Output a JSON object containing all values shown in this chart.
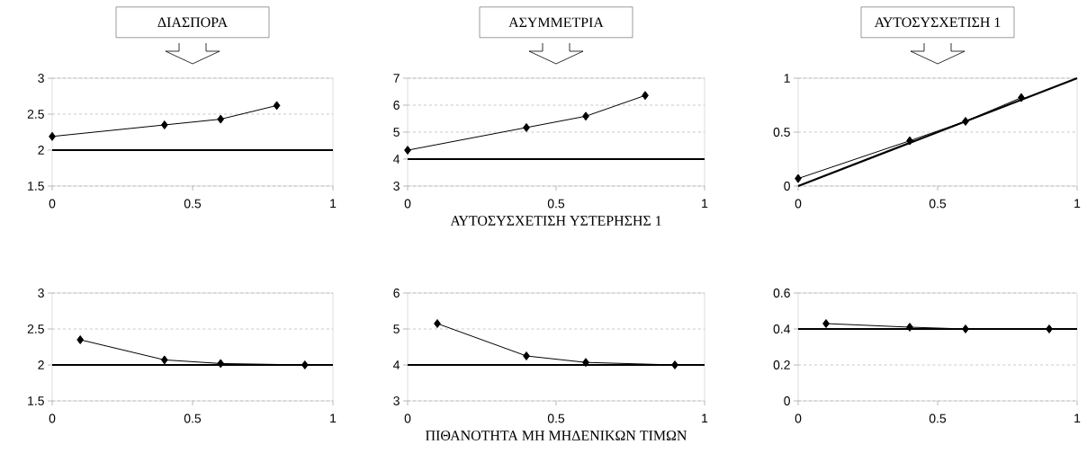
{
  "chart_data": [
    {
      "type": "line",
      "title": "ΔΙΑΣΠΟΡΑ",
      "x": [
        0,
        0.4,
        0.6,
        0.8
      ],
      "values": [
        2.19,
        2.35,
        2.43,
        2.62
      ],
      "color": "#000000",
      "marker": "diamond",
      "xlim": [
        0,
        1
      ],
      "ylim": [
        1.5,
        3
      ],
      "xticks": [
        0,
        0.5,
        1
      ],
      "yticks": [
        1.5,
        2,
        2.5,
        3
      ],
      "grid": "y",
      "ref_lines": [
        {
          "axis": "y",
          "value": 2,
          "color": "#000000"
        }
      ]
    },
    {
      "type": "line",
      "title": "ΑΣΥΜΜΕΤΡΙΑ",
      "xlabel": "ΑΥΤΟΣΥΣΧΕΤΙΣΗ ΥΣΤΕΡΗΣΗΣ 1",
      "x": [
        0,
        0.4,
        0.6,
        0.8
      ],
      "values": [
        4.33,
        5.17,
        5.59,
        6.36
      ],
      "color": "#000000",
      "marker": "diamond",
      "xlim": [
        0,
        1
      ],
      "ylim": [
        3,
        7
      ],
      "xticks": [
        0,
        0.5,
        1
      ],
      "yticks": [
        3,
        4,
        5,
        6,
        7
      ],
      "grid": "y",
      "ref_lines": [
        {
          "axis": "y",
          "value": 4,
          "color": "#000000"
        }
      ]
    },
    {
      "type": "line",
      "title": "ΑΥΤΟΣΥΣΧΕΤΙΣΗ 1",
      "xlim": [
        0,
        1
      ],
      "ylim": [
        0,
        1
      ],
      "xticks": [
        0,
        0.5,
        1
      ],
      "yticks": [
        0,
        0.5,
        1
      ],
      "grid": "y",
      "series": [
        {
          "x": [
            0,
            0.4,
            0.6,
            0.8
          ],
          "values": [
            0.07,
            0.42,
            0.6,
            0.82
          ],
          "color": "#000000",
          "marker": "diamond"
        },
        {
          "x": [
            0,
            1
          ],
          "values": [
            0,
            1
          ],
          "color": "#000000",
          "marker": "none"
        }
      ]
    },
    {
      "type": "line",
      "x": [
        0.1,
        0.4,
        0.6,
        0.9
      ],
      "values": [
        2.35,
        2.07,
        2.02,
        2.0
      ],
      "color": "#000000",
      "marker": "diamond",
      "xlim": [
        0,
        1
      ],
      "ylim": [
        1.5,
        3
      ],
      "xticks": [
        0,
        0.5,
        1
      ],
      "yticks": [
        1.5,
        2,
        2.5,
        3
      ],
      "grid": "y",
      "ref_lines": [
        {
          "axis": "y",
          "value": 2,
          "color": "#000000"
        }
      ]
    },
    {
      "type": "line",
      "xlabel": "ΠΙΘΑΝΟΤΗΤΑ ΜΗ ΜΗΔΕΝΙΚΩΝ ΤΙΜΩΝ",
      "x": [
        0.1,
        0.4,
        0.6,
        0.9
      ],
      "values": [
        5.15,
        4.25,
        4.07,
        4.0
      ],
      "color": "#000000",
      "marker": "diamond",
      "xlim": [
        0,
        1
      ],
      "ylim": [
        3,
        6
      ],
      "xticks": [
        0,
        0.5,
        1
      ],
      "yticks": [
        3,
        4,
        5,
        6
      ],
      "grid": "y",
      "ref_lines": [
        {
          "axis": "y",
          "value": 4,
          "color": "#000000"
        }
      ]
    },
    {
      "type": "line",
      "x": [
        0.1,
        0.4,
        0.6,
        0.9
      ],
      "values": [
        0.43,
        0.41,
        0.4,
        0.4
      ],
      "color": "#000000",
      "marker": "diamond",
      "xlim": [
        0,
        1
      ],
      "ylim": [
        0,
        0.6
      ],
      "xticks": [
        0,
        0.5,
        1
      ],
      "yticks": [
        0,
        0.2,
        0.4,
        0.6
      ],
      "grid": "y",
      "ref_lines": [
        {
          "axis": "y",
          "value": 0.4,
          "color": "#000000"
        }
      ]
    }
  ]
}
